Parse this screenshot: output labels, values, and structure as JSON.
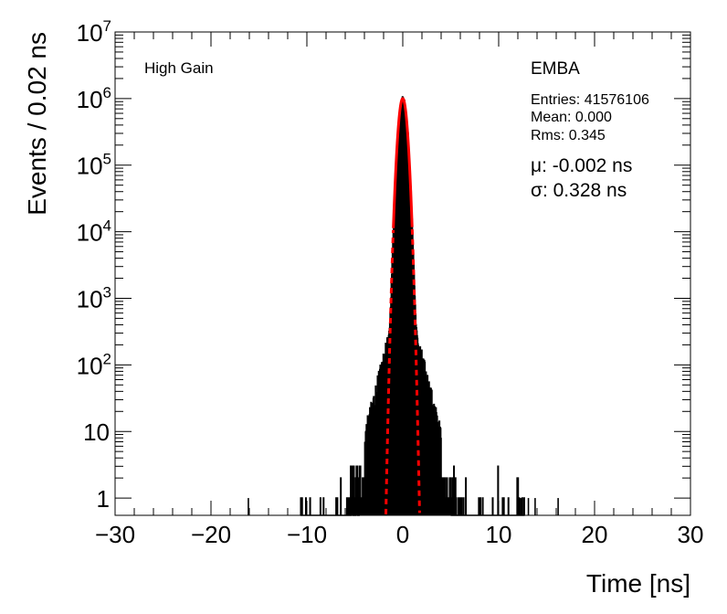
{
  "chart_data": {
    "type": "histogram",
    "title": "",
    "xlabel": "Time [ns]",
    "ylabel": "Events / 0.02 ns",
    "xlim": [
      -30,
      30
    ],
    "ylim": [
      0.55,
      10000000
    ],
    "yscale": "log",
    "grid": false,
    "x_ticks": [
      {
        "value": -30,
        "label": "−30"
      },
      {
        "value": -20,
        "label": "−20"
      },
      {
        "value": -10,
        "label": "−10"
      },
      {
        "value": 0,
        "label": "0"
      },
      {
        "value": 10,
        "label": "10"
      },
      {
        "value": 20,
        "label": "20"
      },
      {
        "value": 30,
        "label": "30"
      }
    ],
    "y_ticks": [
      {
        "value": 1,
        "base": "1",
        "exp": ""
      },
      {
        "value": 10,
        "base": "10",
        "exp": ""
      },
      {
        "value": 100,
        "base": "10",
        "exp": "2"
      },
      {
        "value": 1000,
        "base": "10",
        "exp": "3"
      },
      {
        "value": 10000,
        "base": "10",
        "exp": "4"
      },
      {
        "value": 100000,
        "base": "10",
        "exp": "5"
      },
      {
        "value": 1000000,
        "base": "10",
        "exp": "6"
      },
      {
        "value": 10000000,
        "base": "10",
        "exp": "7"
      }
    ],
    "annotations": {
      "gain_label": "High Gain",
      "partition_label": "EMBA",
      "entries": "Entries: 41576106",
      "mean": "Mean: 0.000",
      "rms": "Rms: 0.345",
      "mu": "μ: -0.002 ns",
      "sigma": "σ: 0.328 ns"
    },
    "histogram": {
      "color": "#000000",
      "core_peak": 1000000,
      "core_sigma": 0.328,
      "core_mean": -0.002,
      "tail_amplitude": 1600,
      "tail_scale": 0.75,
      "left_edge": -13,
      "right_edge": 13,
      "isolated_singletons": [
        -16.1,
        12.3,
        13.1,
        13.8,
        16.2
      ]
    },
    "fit": {
      "color": "#ff0000",
      "mean": -0.002,
      "sigma": 0.328,
      "amplitude": 1000000,
      "style": "solid core, dashed wings"
    }
  }
}
